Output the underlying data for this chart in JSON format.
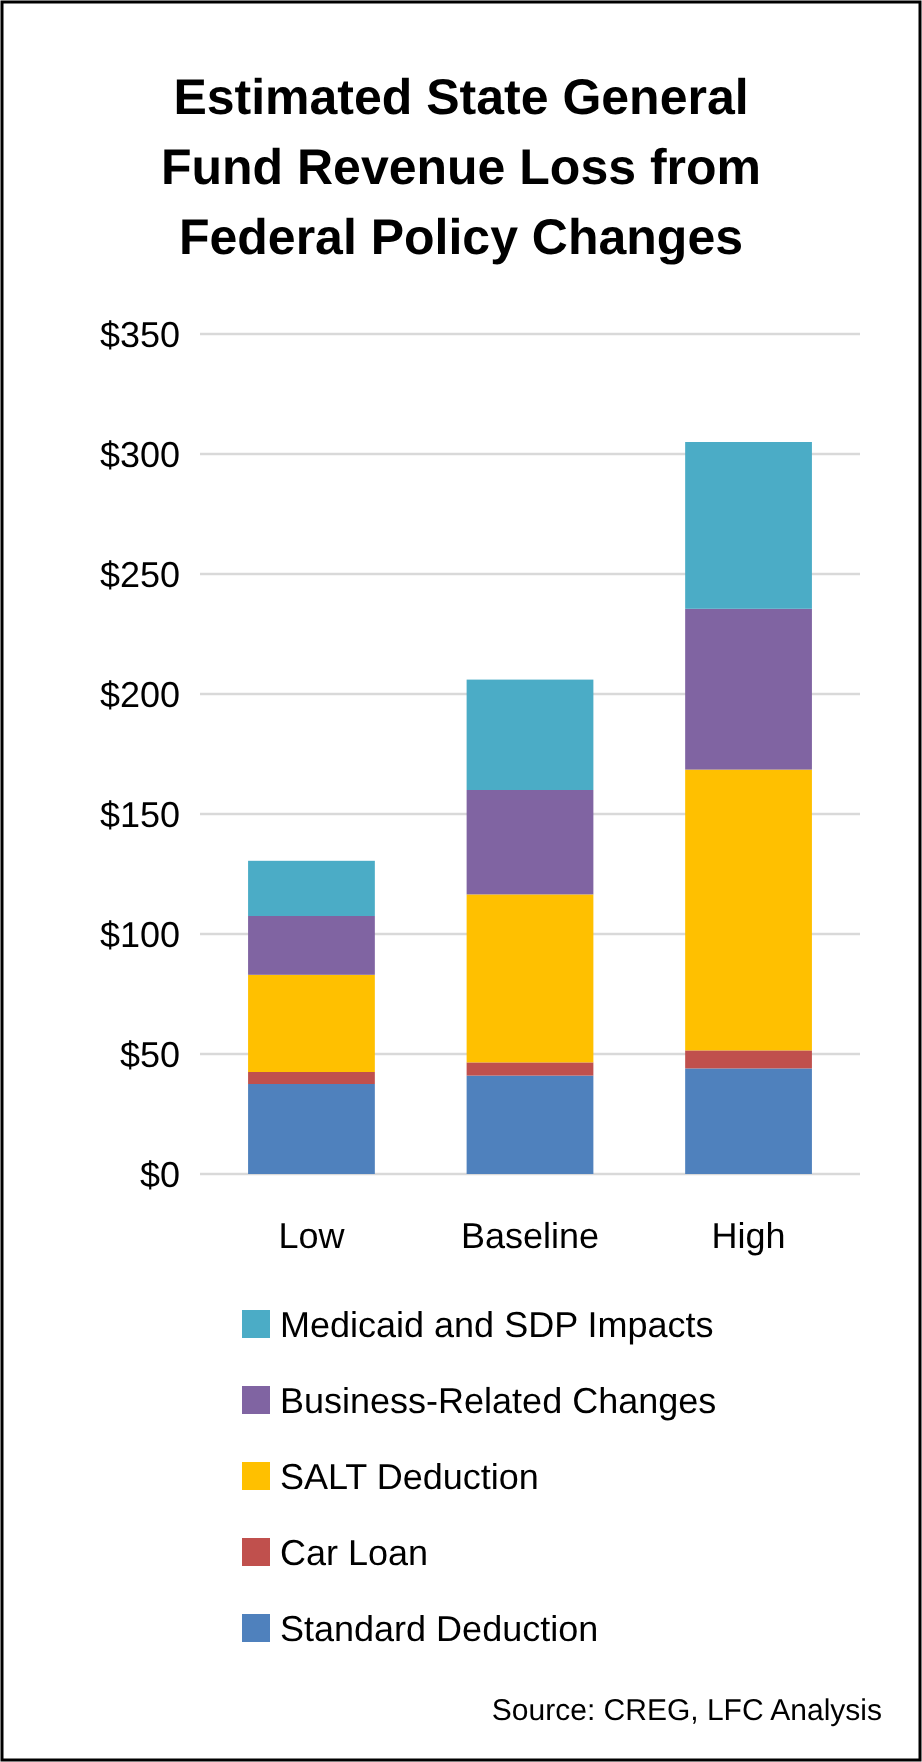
{
  "chart_data": {
    "type": "bar",
    "stacked": true,
    "title": "Estimated State General Fund Revenue Loss from Federal Policy Changes",
    "categories": [
      "Low",
      "Baseline",
      "High"
    ],
    "series": [
      {
        "name": "Standard Deduction",
        "color": "#4f81bd",
        "values": [
          37.5,
          41,
          44
        ]
      },
      {
        "name": "Car Loan",
        "color": "#c0504d",
        "values": [
          5,
          5.5,
          7.5
        ]
      },
      {
        "name": "SALT Deduction",
        "color": "#ffc000",
        "values": [
          40.5,
          70,
          117
        ]
      },
      {
        "name": "Business-Related Changes",
        "color": "#8064a2",
        "values": [
          24.5,
          43.5,
          67
        ]
      },
      {
        "name": "Medicaid and SDP Impacts",
        "color": "#4bacc6",
        "values": [
          23,
          46,
          69.5
        ]
      }
    ],
    "ylim": [
      0,
      350
    ],
    "yticks": [
      {
        "value": 0,
        "label": "$0"
      },
      {
        "value": 50,
        "label": "$50"
      },
      {
        "value": 100,
        "label": "$100"
      },
      {
        "value": 150,
        "label": "$150"
      },
      {
        "value": 200,
        "label": "$200"
      },
      {
        "value": 250,
        "label": "$250"
      },
      {
        "value": 300,
        "label": "$300"
      },
      {
        "value": 350,
        "label": "$350"
      }
    ],
    "grid": "y",
    "legend": "bottom",
    "annotations": [
      "Source: CREG, LFC Analysis"
    ]
  }
}
